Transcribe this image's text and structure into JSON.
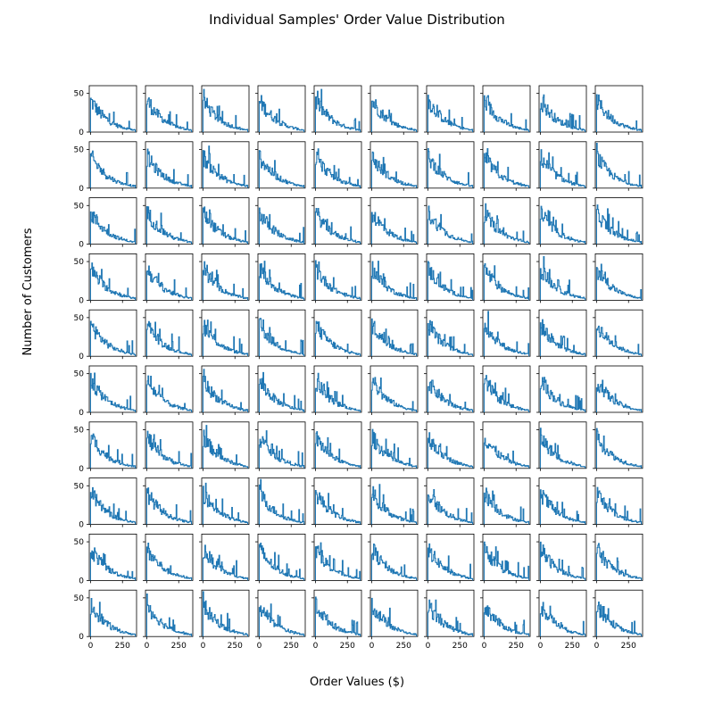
{
  "chart_data": {
    "type": "line",
    "title": "Individual Samples' Order Value Distribution",
    "xlabel": "Order Values ($)",
    "ylabel": "Number of Customers",
    "grid": false,
    "layout": {
      "rows": 10,
      "cols": 10
    },
    "xlim": [
      -10,
      360
    ],
    "ylim": [
      0,
      60
    ],
    "xticks": [
      0,
      250
    ],
    "xtick_labels": [
      "0",
      "250"
    ],
    "yticks": [
      0,
      50
    ],
    "ytick_labels": [
      "0",
      "50"
    ],
    "series_color": "#1f77b4",
    "bins": 70,
    "bin_width": 5,
    "mean_profile": [
      40,
      39,
      38,
      37,
      36,
      35,
      34,
      32,
      31,
      30,
      29,
      28,
      27,
      26,
      25,
      24,
      23,
      23,
      22,
      21,
      20,
      19,
      19,
      18,
      17,
      17,
      16,
      15,
      15,
      14,
      14,
      13,
      12,
      12,
      12,
      11,
      11,
      10,
      10,
      10,
      9,
      9,
      8,
      8,
      8,
      8,
      7,
      7,
      7,
      6,
      6,
      6,
      6,
      5,
      5,
      5,
      5,
      5,
      4,
      4,
      4,
      4,
      4,
      3,
      3,
      3,
      3,
      3,
      3,
      3
    ],
    "note_values": "Each of the 100 panels is a step histogram; counts vary randomly around mean_profile (peaks ~40-55)."
  }
}
